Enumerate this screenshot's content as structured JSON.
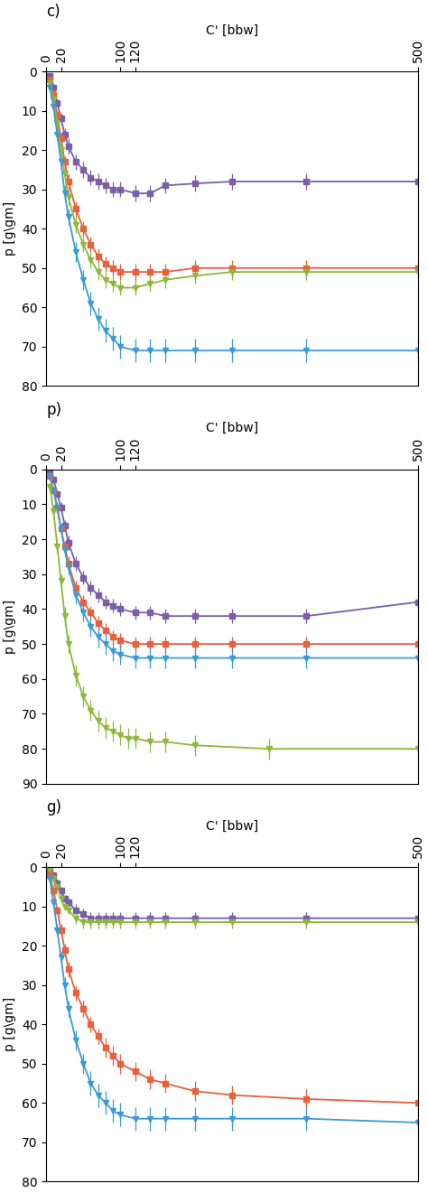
{
  "chart_data": [
    {
      "type": "line",
      "title": "c)",
      "x_label": "C' [bbw]",
      "y_label": "p [g\\gm]",
      "xlim": [
        0,
        500
      ],
      "ylim": [
        80,
        0
      ],
      "xticks": [
        0,
        20,
        100,
        120,
        500
      ],
      "yticks": [
        0,
        10,
        20,
        30,
        40,
        50,
        60,
        70,
        80
      ],
      "grid": false,
      "series": [
        {
          "color": "#7B5EA7",
          "marker": "square",
          "x": [
            5,
            10,
            15,
            20,
            25,
            30,
            40,
            50,
            60,
            70,
            80,
            90,
            100,
            120,
            140,
            160,
            200,
            250,
            350,
            500
          ],
          "values": [
            1,
            4,
            8,
            12,
            16,
            19,
            23,
            25,
            27,
            28,
            29,
            30,
            30,
            31,
            31,
            29,
            28.5,
            28,
            28,
            28
          ],
          "errors": [
            0.5,
            1,
            1,
            1.5,
            1.5,
            2,
            2,
            2,
            2,
            2,
            2,
            2,
            2,
            2,
            2,
            2,
            2,
            2,
            2,
            2
          ]
        },
        {
          "color": "#E8603C",
          "marker": "square",
          "x": [
            5,
            10,
            15,
            20,
            25,
            30,
            40,
            50,
            60,
            70,
            80,
            90,
            100,
            120,
            140,
            160,
            200,
            250,
            350,
            500
          ],
          "values": [
            2,
            6,
            11,
            17,
            23,
            28,
            35,
            40,
            44,
            47,
            49,
            50,
            51,
            51,
            51,
            51,
            50,
            50,
            50,
            50
          ],
          "errors": [
            0.5,
            1,
            1,
            1.5,
            1.5,
            2,
            2,
            2,
            2,
            2,
            2,
            2,
            2,
            2,
            2,
            2,
            2,
            2,
            2,
            2
          ]
        },
        {
          "color": "#8DB83A",
          "marker": "triangle_down",
          "x": [
            5,
            10,
            15,
            20,
            25,
            30,
            40,
            50,
            60,
            70,
            80,
            90,
            100,
            120,
            140,
            160,
            200,
            250,
            350,
            500
          ],
          "values": [
            3,
            7,
            13,
            20,
            26,
            32,
            39,
            44,
            48,
            51,
            53,
            54,
            55,
            55,
            54,
            53,
            52,
            51,
            51,
            51
          ],
          "errors": [
            0.5,
            1,
            1,
            1.5,
            1.5,
            2,
            2,
            2,
            2,
            2,
            2,
            2,
            2,
            2,
            2,
            2,
            2,
            2,
            2,
            2
          ]
        },
        {
          "color": "#3B9BD4",
          "marker": "triangle_down",
          "x": [
            5,
            10,
            15,
            20,
            25,
            30,
            40,
            50,
            60,
            70,
            80,
            90,
            100,
            120,
            140,
            160,
            200,
            250,
            350,
            500
          ],
          "values": [
            4,
            9,
            16,
            23,
            31,
            37,
            46,
            53,
            59,
            63,
            66,
            68,
            70,
            71,
            71,
            71,
            71,
            71,
            71,
            71
          ],
          "errors": [
            0.5,
            1,
            1.5,
            1.5,
            2,
            2,
            2.5,
            2.5,
            3,
            3,
            3,
            3,
            3,
            3,
            3,
            3,
            3,
            3,
            3,
            3
          ]
        }
      ]
    },
    {
      "type": "line",
      "title": "p)",
      "x_label": "C' [bbw]",
      "y_label": "p [g\\gm]",
      "xlim": [
        0,
        500
      ],
      "ylim": [
        90,
        0
      ],
      "xticks": [
        0,
        20,
        100,
        120,
        500
      ],
      "yticks": [
        0,
        10,
        20,
        30,
        40,
        50,
        60,
        70,
        80,
        90
      ],
      "grid": false,
      "series": [
        {
          "color": "#7B5EA7",
          "marker": "square",
          "x": [
            5,
            10,
            15,
            20,
            25,
            30,
            40,
            50,
            60,
            70,
            80,
            90,
            100,
            120,
            140,
            160,
            200,
            250,
            350,
            500
          ],
          "values": [
            1,
            3,
            7,
            11,
            16,
            21,
            27,
            31,
            34,
            36,
            38,
            39,
            40,
            41,
            41,
            42,
            42,
            42,
            42,
            38
          ],
          "errors": [
            0.5,
            1,
            1,
            1.5,
            1.5,
            2,
            2,
            2,
            2,
            2,
            2,
            2,
            2,
            2,
            2,
            2,
            2,
            2,
            2,
            2
          ]
        },
        {
          "color": "#E8603C",
          "marker": "square",
          "x": [
            5,
            10,
            15,
            20,
            25,
            30,
            40,
            50,
            60,
            70,
            80,
            90,
            100,
            120,
            140,
            160,
            200,
            250,
            350,
            500
          ],
          "values": [
            2,
            6,
            11,
            17,
            22,
            27,
            34,
            38,
            41,
            44,
            46,
            48,
            49,
            50,
            50,
            50,
            50,
            50,
            50,
            50
          ],
          "errors": [
            0.5,
            1,
            1,
            1.5,
            1.5,
            2,
            2,
            2,
            2,
            2,
            2,
            2,
            2,
            2,
            2,
            2,
            2,
            2,
            2,
            2
          ]
        },
        {
          "color": "#3B9BD4",
          "marker": "triangle_down",
          "x": [
            5,
            10,
            15,
            20,
            25,
            30,
            40,
            50,
            60,
            70,
            80,
            90,
            100,
            120,
            140,
            160,
            200,
            250,
            350,
            500
          ],
          "values": [
            2,
            6,
            11,
            17,
            23,
            28,
            36,
            41,
            45,
            48,
            50,
            52,
            53,
            54,
            54,
            54,
            54,
            54,
            54,
            54
          ],
          "errors": [
            0.5,
            1,
            1.5,
            1.5,
            2,
            2,
            2.5,
            2.5,
            3,
            3,
            3,
            3,
            3,
            3,
            3,
            3,
            3,
            3,
            3,
            3
          ]
        },
        {
          "color": "#8DB83A",
          "marker": "triangle_down",
          "x": [
            5,
            10,
            15,
            20,
            25,
            30,
            40,
            50,
            60,
            70,
            80,
            90,
            100,
            110,
            120,
            140,
            160,
            200,
            300,
            500
          ],
          "values": [
            5,
            12,
            22,
            32,
            42,
            50,
            59,
            65,
            69,
            72,
            74,
            75,
            76,
            77,
            77,
            78,
            78,
            79,
            80,
            80
          ],
          "errors": [
            1,
            1.5,
            2,
            2,
            2.5,
            2.5,
            3,
            3,
            3,
            3,
            3,
            3,
            3,
            3,
            3,
            3,
            3,
            3,
            3,
            3
          ]
        }
      ]
    },
    {
      "type": "line",
      "title": "g)",
      "x_label": "C' [bbw]",
      "y_label": "p [g\\gm]",
      "xlim": [
        0,
        500
      ],
      "ylim": [
        80,
        0
      ],
      "xticks": [
        0,
        20,
        100,
        120,
        500
      ],
      "yticks": [
        0,
        10,
        20,
        30,
        40,
        50,
        60,
        70,
        80
      ],
      "grid": false,
      "series": [
        {
          "color": "#7B5EA7",
          "marker": "square",
          "x": [
            5,
            10,
            15,
            20,
            25,
            30,
            40,
            50,
            60,
            70,
            80,
            90,
            100,
            120,
            140,
            160,
            200,
            250,
            350,
            500
          ],
          "values": [
            1,
            2,
            4,
            6,
            8,
            9,
            11,
            12,
            13,
            13,
            13,
            13,
            13,
            13,
            13,
            13,
            13,
            13,
            13,
            13
          ],
          "errors": [
            0.5,
            0.5,
            1,
            1,
            1,
            1,
            1.5,
            1.5,
            1.5,
            1.5,
            1.5,
            1.5,
            1.5,
            1.5,
            1.5,
            1.5,
            1.5,
            1.5,
            1.5,
            1.5
          ]
        },
        {
          "color": "#8DB83A",
          "marker": "triangle_down",
          "x": [
            5,
            10,
            15,
            20,
            25,
            30,
            40,
            50,
            60,
            70,
            80,
            90,
            100,
            120,
            140,
            160,
            200,
            250,
            350,
            500
          ],
          "values": [
            1,
            3,
            5,
            8,
            10,
            11,
            13,
            14,
            14,
            14,
            14,
            14,
            14,
            14,
            14,
            14,
            14,
            14,
            14,
            14
          ],
          "errors": [
            0.5,
            0.5,
            1,
            1,
            1,
            1,
            1.5,
            1.5,
            1.5,
            1.5,
            1.5,
            1.5,
            1.5,
            1.5,
            1.5,
            1.5,
            1.5,
            1.5,
            1.5,
            1.5
          ]
        },
        {
          "color": "#E8603C",
          "marker": "square",
          "x": [
            5,
            10,
            15,
            20,
            25,
            30,
            40,
            50,
            60,
            70,
            80,
            90,
            100,
            120,
            140,
            160,
            200,
            250,
            350,
            500
          ],
          "values": [
            2,
            6,
            11,
            16,
            21,
            26,
            32,
            36,
            40,
            43,
            46,
            48,
            50,
            52,
            54,
            55,
            57,
            58,
            59,
            60
          ],
          "errors": [
            0.5,
            1,
            1,
            1.5,
            1.5,
            2,
            2,
            2,
            2,
            2,
            2.5,
            2.5,
            2.5,
            2.5,
            2.5,
            2.5,
            2.5,
            2.5,
            2.5,
            2.5
          ]
        },
        {
          "color": "#3B9BD4",
          "marker": "triangle_down",
          "x": [
            5,
            10,
            15,
            20,
            25,
            30,
            40,
            50,
            60,
            70,
            80,
            90,
            100,
            120,
            140,
            160,
            200,
            250,
            350,
            500
          ],
          "values": [
            3,
            9,
            16,
            23,
            30,
            36,
            44,
            50,
            55,
            58,
            60,
            62,
            63,
            64,
            64,
            64,
            64,
            64,
            64,
            65
          ],
          "errors": [
            0.5,
            1,
            1.5,
            1.5,
            2,
            2,
            2.5,
            2.5,
            3,
            3,
            3,
            3,
            3,
            3,
            3,
            3,
            3,
            3,
            3,
            3
          ]
        }
      ]
    }
  ]
}
